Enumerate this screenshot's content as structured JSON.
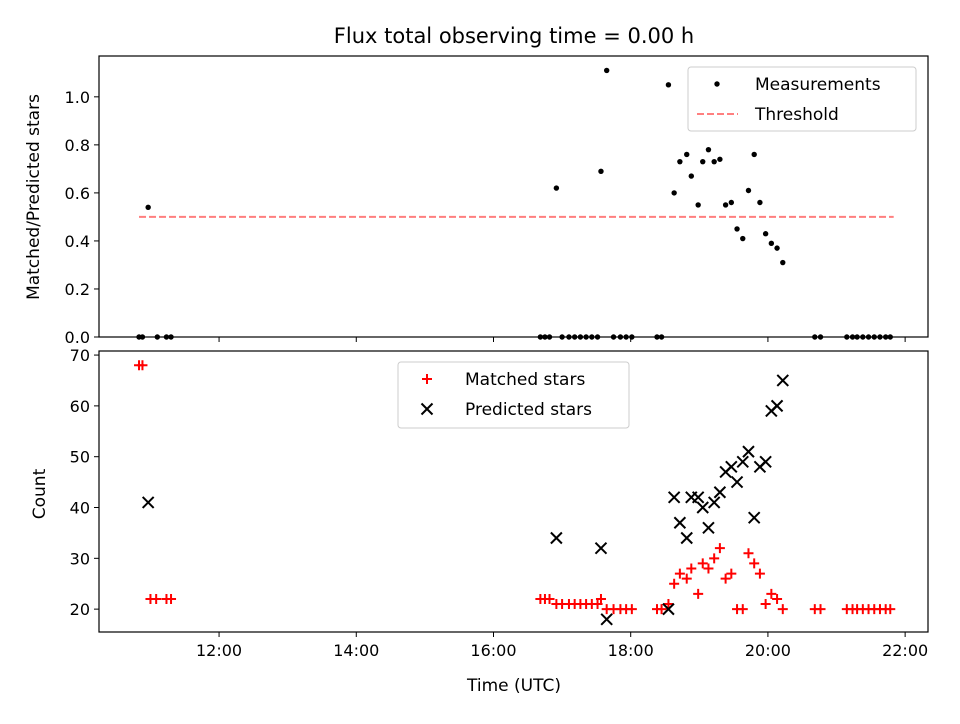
{
  "chart_data": [
    {
      "type": "scatter",
      "title": "Flux total observing time = 0.00 h",
      "xlabel": "",
      "ylabel": "Matched/Predicted stars",
      "xlim": [
        "10:15",
        "22:20"
      ],
      "ylim": [
        0,
        1.17
      ],
      "yticks": [
        "0.0",
        "0.2",
        "0.4",
        "0.6",
        "0.8",
        "1.0"
      ],
      "xticks": [
        "12:00",
        "14:00",
        "16:00",
        "18:00",
        "20:00",
        "22:00"
      ],
      "legend_position": "upper right",
      "series": [
        {
          "name": "Measurements",
          "marker": "dot",
          "color": "#000000",
          "points": [
            [
              "10:50",
              0.0
            ],
            [
              "10:53",
              0.0
            ],
            [
              "10:58",
              0.54
            ],
            [
              "11:06",
              0.0
            ],
            [
              "11:14",
              0.0
            ],
            [
              "11:18",
              0.0
            ],
            [
              "16:41",
              0.0
            ],
            [
              "16:45",
              0.0
            ],
            [
              "16:49",
              0.0
            ],
            [
              "16:55",
              0.62
            ],
            [
              "17:00",
              0.0
            ],
            [
              "17:06",
              0.0
            ],
            [
              "17:11",
              0.0
            ],
            [
              "17:16",
              0.0
            ],
            [
              "17:21",
              0.0
            ],
            [
              "17:26",
              0.0
            ],
            [
              "17:31",
              0.0
            ],
            [
              "17:34",
              0.69
            ],
            [
              "17:39",
              1.11
            ],
            [
              "17:45",
              0.0
            ],
            [
              "17:51",
              0.0
            ],
            [
              "17:56",
              0.0
            ],
            [
              "18:01",
              0.0
            ],
            [
              "18:23",
              0.0
            ],
            [
              "18:27",
              0.0
            ],
            [
              "18:33",
              1.05
            ],
            [
              "18:38",
              0.6
            ],
            [
              "18:43",
              0.73
            ],
            [
              "18:49",
              0.76
            ],
            [
              "18:53",
              0.67
            ],
            [
              "18:59",
              0.55
            ],
            [
              "19:03",
              0.73
            ],
            [
              "19:08",
              0.78
            ],
            [
              "19:13",
              0.73
            ],
            [
              "19:18",
              0.74
            ],
            [
              "19:23",
              0.55
            ],
            [
              "19:28",
              0.56
            ],
            [
              "19:33",
              0.45
            ],
            [
              "19:38",
              0.41
            ],
            [
              "19:43",
              0.61
            ],
            [
              "19:48",
              0.76
            ],
            [
              "19:53",
              0.56
            ],
            [
              "19:58",
              0.43
            ],
            [
              "20:03",
              0.39
            ],
            [
              "20:08",
              0.37
            ],
            [
              "20:13",
              0.31
            ],
            [
              "20:41",
              0.0
            ],
            [
              "20:46",
              0.0
            ],
            [
              "21:09",
              0.0
            ],
            [
              "21:14",
              0.0
            ],
            [
              "21:18",
              0.0
            ],
            [
              "21:23",
              0.0
            ],
            [
              "21:28",
              0.0
            ],
            [
              "21:33",
              0.0
            ],
            [
              "21:38",
              0.0
            ],
            [
              "21:43",
              0.0
            ],
            [
              "21:47",
              0.0
            ]
          ]
        },
        {
          "name": "Threshold",
          "style": "dashed",
          "color": "#ff7f7f",
          "points": [
            [
              "10:50",
              0.5
            ],
            [
              "21:50",
              0.5
            ]
          ]
        }
      ]
    },
    {
      "type": "scatter",
      "title": "",
      "xlabel": "Time (UTC)",
      "ylabel": "Count",
      "xlim": [
        "10:15",
        "22:20"
      ],
      "ylim": [
        15.5,
        70.8
      ],
      "yticks": [
        "20",
        "30",
        "40",
        "50",
        "60",
        "70"
      ],
      "xticks": [
        "12:00",
        "14:00",
        "16:00",
        "18:00",
        "20:00",
        "22:00"
      ],
      "legend_position": "upper center",
      "series": [
        {
          "name": "Matched stars",
          "marker": "plus",
          "color": "#ff0000",
          "points": [
            [
              "10:50",
              68
            ],
            [
              "10:53",
              68
            ],
            [
              "11:00",
              22
            ],
            [
              "11:05",
              22
            ],
            [
              "11:14",
              22
            ],
            [
              "11:18",
              22
            ],
            [
              "16:41",
              22
            ],
            [
              "16:45",
              22
            ],
            [
              "16:49",
              22
            ],
            [
              "16:55",
              21
            ],
            [
              "17:00",
              21
            ],
            [
              "17:06",
              21
            ],
            [
              "17:11",
              21
            ],
            [
              "17:16",
              21
            ],
            [
              "17:21",
              21
            ],
            [
              "17:26",
              21
            ],
            [
              "17:31",
              21
            ],
            [
              "17:34",
              22
            ],
            [
              "17:39",
              20
            ],
            [
              "17:45",
              20
            ],
            [
              "17:51",
              20
            ],
            [
              "17:56",
              20
            ],
            [
              "18:01",
              20
            ],
            [
              "18:23",
              20
            ],
            [
              "18:27",
              20
            ],
            [
              "18:33",
              21
            ],
            [
              "18:38",
              25
            ],
            [
              "18:43",
              27
            ],
            [
              "18:49",
              26
            ],
            [
              "18:53",
              28
            ],
            [
              "18:59",
              23
            ],
            [
              "19:03",
              29
            ],
            [
              "19:08",
              28
            ],
            [
              "19:13",
              30
            ],
            [
              "19:18",
              32
            ],
            [
              "19:23",
              26
            ],
            [
              "19:28",
              27
            ],
            [
              "19:33",
              20
            ],
            [
              "19:38",
              20
            ],
            [
              "19:43",
              31
            ],
            [
              "19:48",
              29
            ],
            [
              "19:53",
              27
            ],
            [
              "19:58",
              21
            ],
            [
              "20:03",
              23
            ],
            [
              "20:08",
              22
            ],
            [
              "20:13",
              20
            ],
            [
              "20:41",
              20
            ],
            [
              "20:46",
              20
            ],
            [
              "21:09",
              20
            ],
            [
              "21:14",
              20
            ],
            [
              "21:18",
              20
            ],
            [
              "21:23",
              20
            ],
            [
              "21:28",
              20
            ],
            [
              "21:33",
              20
            ],
            [
              "21:38",
              20
            ],
            [
              "21:43",
              20
            ],
            [
              "21:47",
              20
            ]
          ]
        },
        {
          "name": "Predicted stars",
          "marker": "x",
          "color": "#000000",
          "points": [
            [
              "10:58",
              41
            ],
            [
              "16:55",
              34
            ],
            [
              "17:34",
              32
            ],
            [
              "17:39",
              18
            ],
            [
              "18:33",
              20
            ],
            [
              "18:38",
              42
            ],
            [
              "18:43",
              37
            ],
            [
              "18:49",
              34
            ],
            [
              "18:53",
              42
            ],
            [
              "18:59",
              42
            ],
            [
              "19:03",
              40
            ],
            [
              "19:08",
              36
            ],
            [
              "19:13",
              41
            ],
            [
              "19:18",
              43
            ],
            [
              "19:23",
              47
            ],
            [
              "19:28",
              48
            ],
            [
              "19:33",
              45
            ],
            [
              "19:38",
              49
            ],
            [
              "19:43",
              51
            ],
            [
              "19:48",
              38
            ],
            [
              "19:53",
              48
            ],
            [
              "19:58",
              49
            ],
            [
              "20:03",
              59
            ],
            [
              "20:08",
              60
            ],
            [
              "20:13",
              65
            ]
          ]
        }
      ]
    }
  ]
}
